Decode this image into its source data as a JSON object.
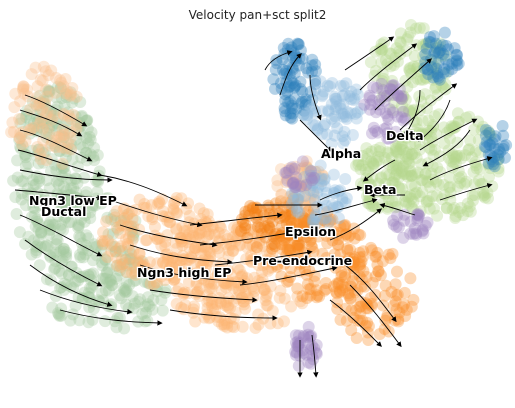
{
  "title": "Velocity pan+sct split2",
  "clusters": [
    {
      "name": "Ngn3 low EP",
      "color": "#9fc59a"
    },
    {
      "name": "Ductal",
      "color": "#a9c7a2"
    },
    {
      "name": "Ngn3 high EP",
      "color": "#fdb36e"
    },
    {
      "name": "Pre-endocrine",
      "color": "#f98e2a"
    },
    {
      "name": "Epsilon",
      "color": "#f58518"
    },
    {
      "name": "Alpha",
      "color": "#7fb0d9"
    },
    {
      "name": "Beta",
      "color": "#b5d98f"
    },
    {
      "name": "Delta",
      "color": "#b19dcc"
    }
  ],
  "colors": {
    "ductal": "#a3c89f",
    "ngn3_low": "#f8c08c",
    "ngn3_high": "#fdb574",
    "pre_endocrine": "#f98e2a",
    "epsilon": "#f47f12",
    "alpha": "#2a7fba",
    "alpha_light": "#8fb9dc",
    "beta": "#b4d88d",
    "delta": "#9d83c0"
  }
}
